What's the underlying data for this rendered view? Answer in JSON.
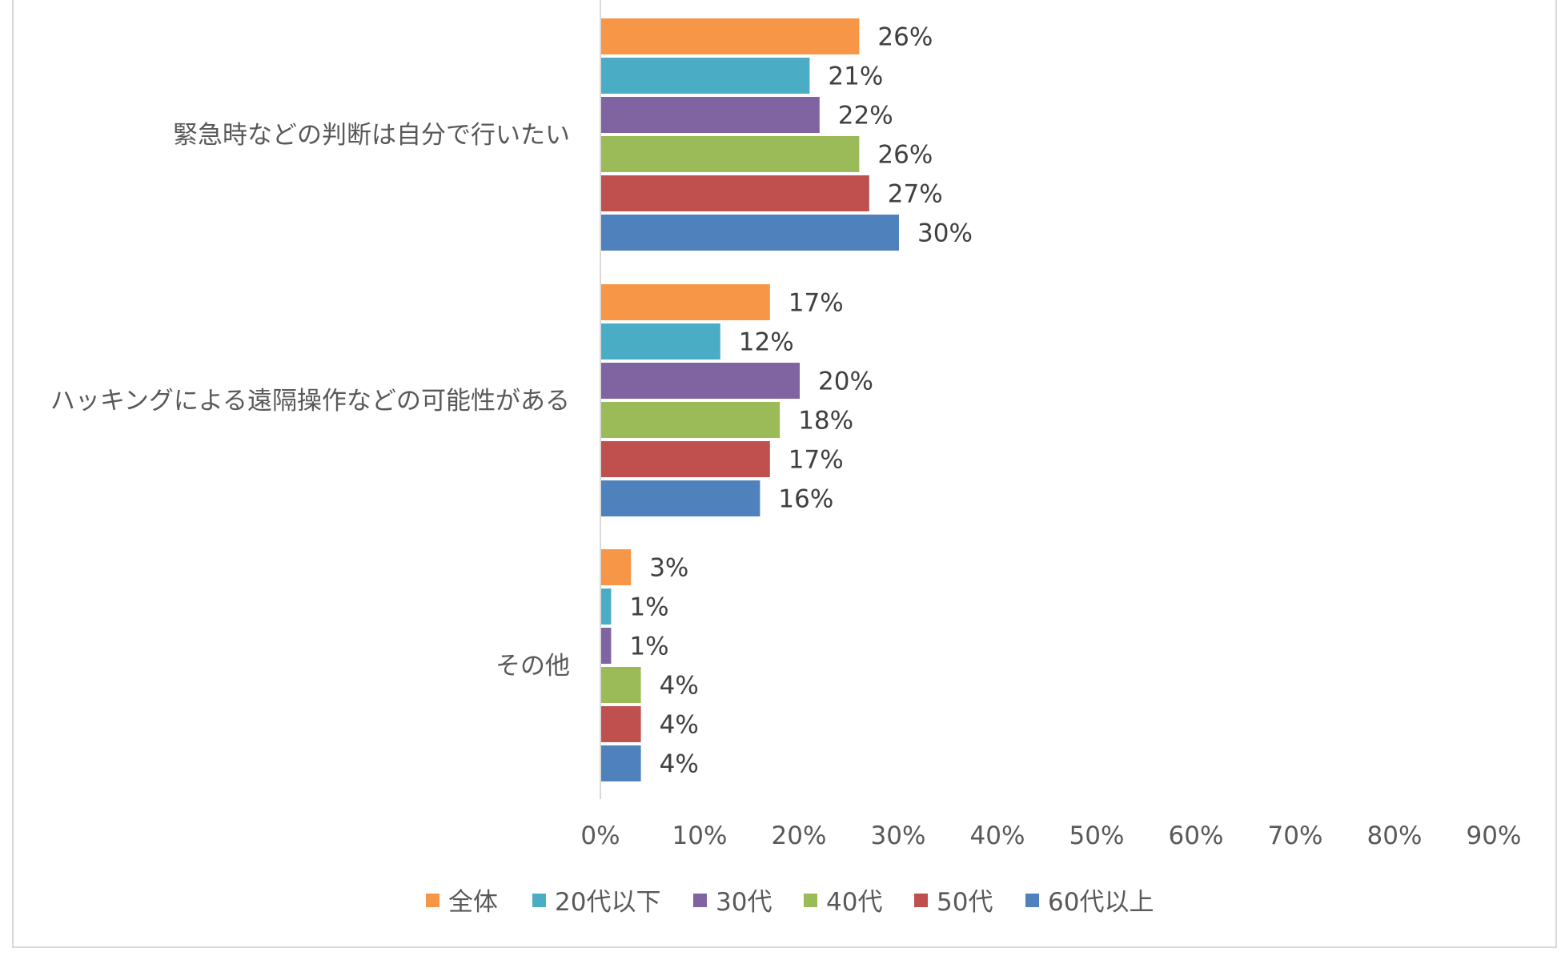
{
  "chart_data": {
    "type": "bar",
    "orientation": "horizontal",
    "categories": [
      "緊急時などの判断は自分で行いたい",
      "ハッキングによる遠隔操作などの可能性がある",
      "その他"
    ],
    "series": [
      {
        "name": "全体",
        "color": "#F79646",
        "values": [
          26,
          17,
          3
        ],
        "labels": [
          "26%",
          "17%",
          "3%"
        ]
      },
      {
        "name": "20代以下",
        "color": "#4BACC6",
        "values": [
          21,
          12,
          1
        ],
        "labels": [
          "21%",
          "12%",
          "1%"
        ]
      },
      {
        "name": "30代",
        "color": "#8064A2",
        "values": [
          22,
          20,
          1
        ],
        "labels": [
          "22%",
          "20%",
          "1%"
        ]
      },
      {
        "name": "40代",
        "color": "#9BBB59",
        "values": [
          26,
          18,
          4
        ],
        "labels": [
          "26%",
          "18%",
          "4%"
        ]
      },
      {
        "name": "50代",
        "color": "#C0504D",
        "values": [
          27,
          17,
          4
        ],
        "labels": [
          "27%",
          "17%",
          "4%"
        ]
      },
      {
        "name": "60代以上",
        "color": "#4F81BD",
        "values": [
          30,
          16,
          4
        ],
        "labels": [
          "30%",
          "16%",
          "4%"
        ]
      }
    ],
    "xlim": [
      0,
      90
    ],
    "x_ticks": [
      "0%",
      "10%",
      "20%",
      "30%",
      "40%",
      "50%",
      "60%",
      "70%",
      "80%",
      "90%"
    ],
    "grid": false,
    "legend_position": "bottom"
  }
}
